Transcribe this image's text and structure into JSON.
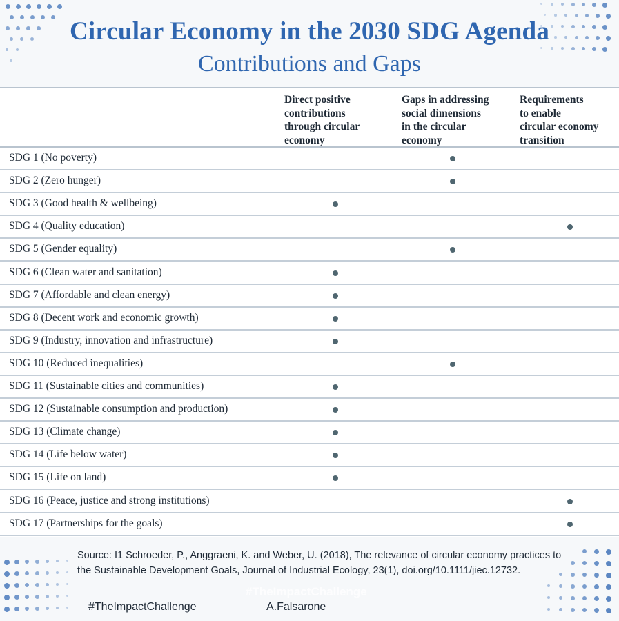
{
  "header": {
    "title": "Circular Economy in the 2030 SDG Agenda",
    "subtitle": "Contributions and Gaps"
  },
  "table": {
    "columns": [
      "Direct positive\ncontributions\nthrough circular\neconomy",
      "Gaps in addressing\nsocial dimensions\nin the circular\neconomy",
      "Requirements\nto enable\ncircular economy\ntransition"
    ],
    "rows": [
      {
        "label": "SDG 1 (No poverty)",
        "col": 2
      },
      {
        "label": "SDG 2 (Zero hunger)",
        "col": 2
      },
      {
        "label": "SDG 3 (Good health & wellbeing)",
        "col": 1
      },
      {
        "label": "SDG 4 (Quality education)",
        "col": 3
      },
      {
        "label": "SDG 5 (Gender equality)",
        "col": 2
      },
      {
        "label": "SDG 6 (Clean water and sanitation)",
        "col": 1
      },
      {
        "label": "SDG 7 (Affordable and clean energy)",
        "col": 1
      },
      {
        "label": "SDG 8 (Decent work and economic growth)",
        "col": 1
      },
      {
        "label": "SDG 9 (Industry, innovation and infrastructure)",
        "col": 1
      },
      {
        "label": "SDG 10 (Reduced inequalities)",
        "col": 2
      },
      {
        "label": "SDG 11 (Sustainable cities and communities)",
        "col": 1
      },
      {
        "label": "SDG 12 (Sustainable consumption and production)",
        "col": 1
      },
      {
        "label": "SDG 13 (Climate change)",
        "col": 1
      },
      {
        "label": "SDG 14 (Life below water)",
        "col": 1
      },
      {
        "label": "SDG 15 (Life on land)",
        "col": 1
      },
      {
        "label": "SDG 16 (Peace, justice and strong institutions)",
        "col": 3
      },
      {
        "label": "SDG 17 (Partnerships for the goals)",
        "col": 3
      }
    ]
  },
  "source": "Source: I1 Schroeder, P., Anggraeni, K. and Weber, U. (2018), The relevance of circular economy practices to the Sustainable Development Goals, Journal of Industrial Ecology, 23(1), doi.org/10.1111/jiec.12732.",
  "footer": {
    "watermark": "#TheImpactChallenge",
    "hashtag": "#TheImpactChallenge",
    "author": "A.Falsarone"
  },
  "colors": {
    "title": "#2f66b0",
    "dots": "#5b86c2",
    "mark": "#4f6670"
  }
}
